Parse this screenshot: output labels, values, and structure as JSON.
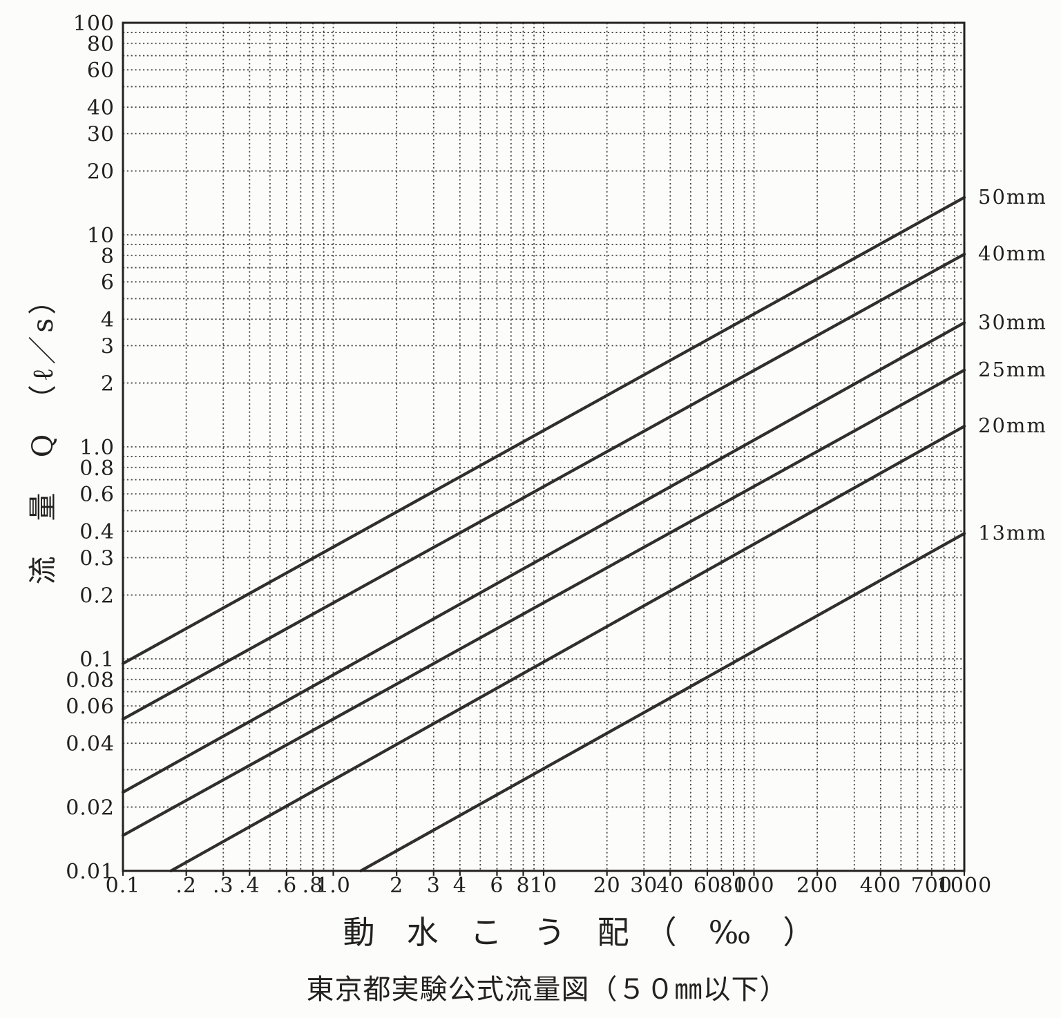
{
  "chart_data": {
    "type": "line",
    "title": "東京都実験公式流量図（５０㎜以下）",
    "xlabel": "動　水　こ　う　配　（　‰　）",
    "ylabel": "流　量　Q　（ℓ／s）",
    "grid": "log-log minor gridlines, dotted, both axes",
    "legend_position": "right-of-plot, label at each line end",
    "x_axis": {
      "scale": "log",
      "min": 0.1,
      "max": 1000,
      "unit": "‰",
      "ticks": [
        {
          "v": 0.1,
          "label": "0.1"
        },
        {
          "v": 0.2,
          "label": ".2"
        },
        {
          "v": 0.3,
          "label": ".3"
        },
        {
          "v": 0.4,
          "label": ".4"
        },
        {
          "v": 0.6,
          "label": ".6"
        },
        {
          "v": 0.8,
          "label": ".8"
        },
        {
          "v": 1.0,
          "label": "1.0"
        },
        {
          "v": 2,
          "label": "2"
        },
        {
          "v": 3,
          "label": "3"
        },
        {
          "v": 4,
          "label": "4"
        },
        {
          "v": 6,
          "label": "6"
        },
        {
          "v": 8,
          "label": "8"
        },
        {
          "v": 10,
          "label": "10"
        },
        {
          "v": 20,
          "label": "20"
        },
        {
          "v": 30,
          "label": "30"
        },
        {
          "v": 40,
          "label": "40"
        },
        {
          "v": 60,
          "label": "60"
        },
        {
          "v": 80,
          "label": "80"
        },
        {
          "v": 100,
          "label": "100"
        },
        {
          "v": 200,
          "label": "200"
        },
        {
          "v": 400,
          "label": "400"
        },
        {
          "v": 700,
          "label": "700"
        },
        {
          "v": 1000,
          "label": "1000"
        }
      ]
    },
    "y_axis": {
      "scale": "log",
      "min": 0.01,
      "max": 100,
      "unit": "ℓ/s",
      "ticks": [
        {
          "v": 100,
          "label": "100"
        },
        {
          "v": 80,
          "label": "80"
        },
        {
          "v": 60,
          "label": "60"
        },
        {
          "v": 40,
          "label": "40"
        },
        {
          "v": 30,
          "label": "30"
        },
        {
          "v": 20,
          "label": "20"
        },
        {
          "v": 10,
          "label": "10"
        },
        {
          "v": 8,
          "label": "8"
        },
        {
          "v": 6,
          "label": "6"
        },
        {
          "v": 4,
          "label": "4"
        },
        {
          "v": 3,
          "label": "3"
        },
        {
          "v": 2,
          "label": "2"
        },
        {
          "v": 1.0,
          "label": "1.0"
        },
        {
          "v": 0.8,
          "label": "0.8"
        },
        {
          "v": 0.6,
          "label": "0.6"
        },
        {
          "v": 0.4,
          "label": "0.4"
        },
        {
          "v": 0.3,
          "label": "0.3"
        },
        {
          "v": 0.2,
          "label": "0.2"
        },
        {
          "v": 0.1,
          "label": "0.1"
        },
        {
          "v": 0.08,
          "label": "0.08"
        },
        {
          "v": 0.06,
          "label": "0.06"
        },
        {
          "v": 0.04,
          "label": "0.04"
        },
        {
          "v": 0.02,
          "label": "0.02"
        },
        {
          "v": 0.01,
          "label": "0.01"
        }
      ]
    },
    "series": [
      {
        "name": "50mm",
        "label": "50mm",
        "points": [
          [
            0.1,
            0.095
          ],
          [
            1000,
            15.0
          ]
        ]
      },
      {
        "name": "40mm",
        "label": "40mm",
        "points": [
          [
            0.1,
            0.052
          ],
          [
            1000,
            8.1
          ]
        ]
      },
      {
        "name": "30mm",
        "label": "30mm",
        "points": [
          [
            0.1,
            0.0235
          ],
          [
            1000,
            3.85
          ]
        ]
      },
      {
        "name": "25mm",
        "label": "25mm",
        "points": [
          [
            0.1,
            0.0147
          ],
          [
            1000,
            2.3
          ]
        ]
      },
      {
        "name": "20mm",
        "label": "20mm",
        "points": [
          [
            0.169,
            0.01
          ],
          [
            1000,
            1.25
          ]
        ]
      },
      {
        "name": "13mm",
        "label": "13mm",
        "points": [
          [
            1.35,
            0.01
          ],
          [
            1000,
            0.39
          ]
        ]
      }
    ],
    "colors": {
      "ink": "#22211f",
      "line": "#262422",
      "grid": "#3b3a37",
      "background": "#fcfcfa"
    }
  }
}
